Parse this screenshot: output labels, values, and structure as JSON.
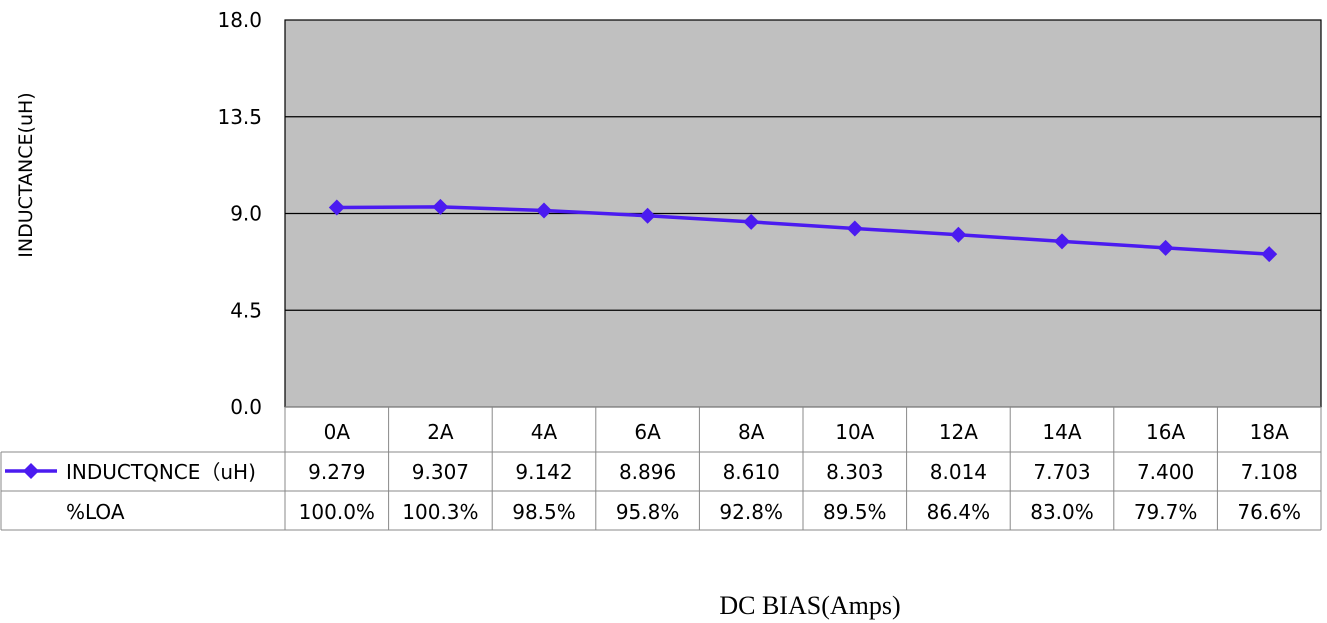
{
  "chart_data": {
    "type": "line",
    "xlabel": "DC BIAS(Amps)",
    "ylabel": "INDUCTANCE(uH)",
    "ylim": [
      0,
      18
    ],
    "yticks": [
      "0.0",
      "4.5",
      "9.0",
      "13.5",
      "18.0"
    ],
    "grid": true,
    "categories": [
      "0A",
      "2A",
      "4A",
      "6A",
      "8A",
      "10A",
      "12A",
      "14A",
      "16A",
      "18A"
    ],
    "series": [
      {
        "name": "INDUCTQNCE（uH)",
        "values": [
          9.279,
          9.307,
          9.142,
          8.896,
          8.61,
          8.303,
          8.014,
          7.703,
          7.4,
          7.108
        ],
        "labels": [
          "9.279",
          "9.307",
          "9.142",
          "8.896",
          "8.610",
          "8.303",
          "8.014",
          "7.703",
          "7.400",
          "7.108"
        ],
        "color": "#4b1bf0"
      }
    ],
    "table_rows": [
      {
        "name": "%LOA",
        "values": [
          "100.0%",
          "100.3%",
          "98.5%",
          "95.8%",
          "92.8%",
          "89.5%",
          "86.4%",
          "83.0%",
          "79.7%",
          "76.6%"
        ]
      }
    ],
    "plot_background": "#c0c0c0"
  }
}
